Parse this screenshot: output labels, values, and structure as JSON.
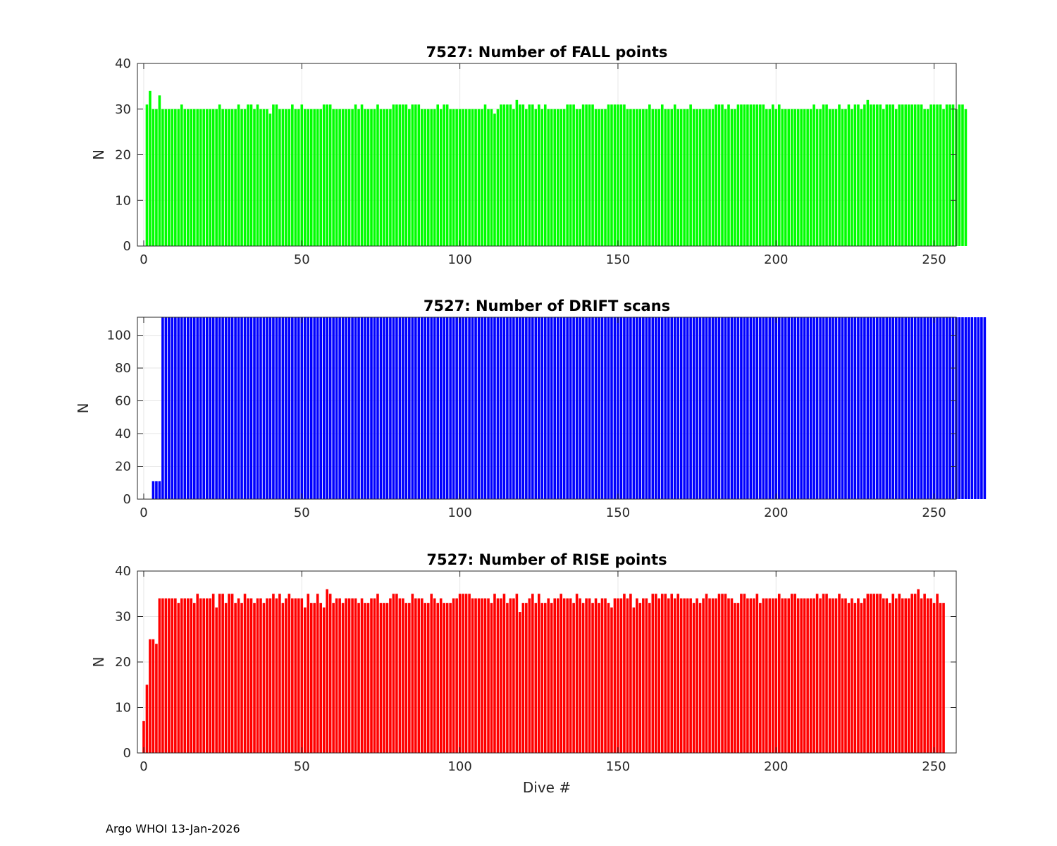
{
  "footer": "Argo WHOI 13-Jan-2026",
  "chart_data": [
    {
      "type": "bar",
      "title": "7527: Number of FALL points",
      "xlabel": "",
      "ylabel": "N",
      "xlim": [
        -2,
        257
      ],
      "ylim": [
        0,
        40
      ],
      "xticks": [
        0,
        50,
        100,
        150,
        200,
        250
      ],
      "yticks": [
        0,
        10,
        20,
        30,
        40
      ],
      "grid": true,
      "color": "#00ff00",
      "series": [
        {
          "name": "FALL points",
          "x_start": 1,
          "values": [
            31,
            34,
            30,
            30,
            33,
            30,
            30,
            30,
            30,
            30,
            30,
            31,
            30,
            30,
            30,
            30,
            30,
            30,
            30,
            30,
            30,
            30,
            30,
            31,
            30,
            30,
            30,
            30,
            30,
            31,
            30,
            30,
            31,
            31,
            30,
            31,
            30,
            30,
            30,
            29,
            31,
            31,
            30,
            30,
            30,
            30,
            31,
            30,
            30,
            31,
            30,
            30,
            30,
            30,
            30,
            30,
            31,
            31,
            31,
            30,
            30,
            30,
            30,
            30,
            30,
            30,
            31,
            30,
            31,
            30,
            30,
            30,
            30,
            31,
            30,
            30,
            30,
            30,
            31,
            31,
            31,
            31,
            31,
            30,
            31,
            31,
            31,
            30,
            30,
            30,
            30,
            30,
            31,
            30,
            31,
            31,
            30,
            30,
            30,
            30,
            30,
            30,
            30,
            30,
            30,
            30,
            30,
            31,
            30,
            30,
            29,
            30,
            31,
            31,
            31,
            31,
            30,
            32,
            31,
            31,
            30,
            31,
            31,
            30,
            31,
            30,
            31,
            30,
            30,
            30,
            30,
            30,
            30,
            31,
            31,
            31,
            30,
            30,
            31,
            31,
            31,
            31,
            30,
            30,
            30,
            30,
            31,
            31,
            31,
            31,
            31,
            31,
            30,
            30,
            30,
            30,
            30,
            30,
            30,
            31,
            30,
            30,
            30,
            31,
            30,
            30,
            30,
            31,
            30,
            30,
            30,
            30,
            31,
            30,
            30,
            30,
            30,
            30,
            30,
            30,
            31,
            31,
            31,
            30,
            31,
            30,
            30,
            31,
            31,
            31,
            31,
            31,
            31,
            31,
            31,
            31,
            30,
            30,
            31,
            30,
            31,
            30,
            30,
            30,
            30,
            30,
            30,
            30,
            30,
            30,
            30,
            31,
            30,
            30,
            31,
            31,
            30,
            30,
            30,
            31,
            30,
            30,
            31,
            30,
            31,
            31,
            30,
            31,
            32,
            31,
            31,
            31,
            31,
            30,
            31,
            31,
            31,
            30,
            31,
            31,
            31,
            31,
            31,
            31,
            31,
            31,
            30,
            30,
            31,
            31,
            31,
            31,
            30,
            31,
            31,
            31,
            30,
            31,
            31,
            30
          ]
        }
      ]
    },
    {
      "type": "bar",
      "title": "7527: Number of DRIFT scans",
      "xlabel": "",
      "ylabel": "N",
      "xlim": [
        -2,
        257
      ],
      "ylim": [
        0,
        111
      ],
      "xticks": [
        0,
        50,
        100,
        150,
        200,
        250
      ],
      "yticks": [
        0,
        20,
        40,
        60,
        80,
        100
      ],
      "grid": true,
      "color": "#0000ff",
      "series": [
        {
          "name": "DRIFT scans",
          "x_start": 3,
          "values": [
            11,
            11,
            11,
            111,
            111,
            111,
            111,
            111,
            111,
            111,
            111,
            111,
            111,
            111,
            111,
            111,
            111,
            111,
            111,
            111,
            111,
            111,
            111,
            111,
            111,
            111,
            111,
            111,
            111,
            111,
            111,
            111,
            111,
            111,
            111,
            111,
            111,
            111,
            111,
            111,
            111,
            111,
            111,
            111,
            111,
            111,
            111,
            111,
            111,
            111,
            111,
            111,
            111,
            111,
            111,
            111,
            111,
            111,
            111,
            111,
            111,
            111,
            111,
            111,
            111,
            111,
            111,
            111,
            111,
            111,
            111,
            111,
            111,
            111,
            111,
            111,
            111,
            111,
            111,
            111,
            111,
            111,
            111,
            111,
            111,
            111,
            111,
            111,
            111,
            111,
            111,
            111,
            111,
            111,
            111,
            111,
            111,
            111,
            111,
            111,
            111,
            111,
            111,
            111,
            111,
            111,
            111,
            111,
            111,
            111,
            111,
            111,
            111,
            111,
            111,
            111,
            111,
            111,
            111,
            111,
            111,
            111,
            111,
            111,
            111,
            111,
            111,
            111,
            111,
            111,
            111,
            111,
            111,
            111,
            111,
            111,
            111,
            111,
            111,
            111,
            111,
            111,
            111,
            111,
            111,
            111,
            111,
            111,
            111,
            111,
            111,
            111,
            111,
            111,
            111,
            111,
            111,
            111,
            111,
            111,
            111,
            111,
            111,
            111,
            111,
            111,
            111,
            111,
            111,
            111,
            111,
            111,
            111,
            111,
            111,
            111,
            111,
            111,
            111,
            111,
            111,
            111,
            111,
            111,
            111,
            111,
            111,
            111,
            111,
            111,
            111,
            111,
            111,
            111,
            111,
            111,
            111,
            111,
            111,
            111,
            111,
            111,
            111,
            111,
            111,
            111,
            111,
            111,
            111,
            111,
            111,
            111,
            111,
            111,
            111,
            111,
            111,
            111,
            111,
            111,
            111,
            111,
            111,
            111,
            111,
            111,
            111,
            111,
            111,
            111,
            111,
            111,
            111,
            111,
            111,
            111,
            111,
            111,
            111,
            111,
            111,
            111,
            111,
            111,
            111,
            111,
            111,
            111,
            111,
            111,
            111,
            111,
            111,
            111,
            111,
            111,
            111,
            111,
            111,
            111,
            111,
            111,
            111,
            111
          ]
        }
      ]
    },
    {
      "type": "bar",
      "title": "7527: Number of RISE points",
      "xlabel": "Dive #",
      "ylabel": "N",
      "xlim": [
        -2,
        257
      ],
      "ylim": [
        0,
        40
      ],
      "xticks": [
        0,
        50,
        100,
        150,
        200,
        250
      ],
      "yticks": [
        0,
        10,
        20,
        30,
        40
      ],
      "grid": true,
      "color": "#ff0000",
      "series": [
        {
          "name": "RISE points",
          "x_start": 0,
          "values": [
            7,
            15,
            25,
            25,
            24,
            34,
            34,
            34,
            34,
            34,
            34,
            33,
            34,
            34,
            34,
            34,
            33,
            35,
            34,
            34,
            34,
            34,
            35,
            32,
            35,
            35,
            33,
            35,
            35,
            33,
            34,
            33,
            35,
            34,
            34,
            33,
            34,
            34,
            33,
            34,
            34,
            35,
            34,
            35,
            33,
            34,
            35,
            34,
            34,
            34,
            34,
            32,
            35,
            33,
            33,
            35,
            33,
            32,
            36,
            35,
            33,
            34,
            34,
            33,
            34,
            34,
            34,
            34,
            33,
            34,
            33,
            33,
            34,
            34,
            35,
            33,
            33,
            33,
            34,
            35,
            35,
            34,
            34,
            33,
            33,
            35,
            34,
            34,
            34,
            33,
            33,
            35,
            34,
            33,
            34,
            33,
            33,
            33,
            34,
            34,
            35,
            35,
            35,
            35,
            34,
            34,
            34,
            34,
            34,
            34,
            33,
            35,
            34,
            34,
            35,
            33,
            34,
            34,
            35,
            31,
            33,
            33,
            34,
            35,
            33,
            35,
            33,
            33,
            34,
            33,
            34,
            34,
            35,
            34,
            34,
            34,
            33,
            35,
            34,
            33,
            34,
            34,
            33,
            34,
            33,
            34,
            34,
            33,
            32,
            34,
            34,
            34,
            35,
            34,
            35,
            32,
            34,
            33,
            34,
            34,
            33,
            35,
            35,
            34,
            35,
            35,
            34,
            35,
            34,
            35,
            34,
            34,
            34,
            34,
            33,
            34,
            33,
            34,
            35,
            34,
            34,
            34,
            35,
            35,
            35,
            34,
            34,
            33,
            33,
            35,
            35,
            34,
            34,
            34,
            35,
            33,
            34,
            34,
            34,
            34,
            34,
            35,
            34,
            34,
            34,
            35,
            35,
            34,
            34,
            34,
            34,
            34,
            34,
            35,
            34,
            35,
            35,
            34,
            34,
            34,
            35,
            34,
            34,
            33,
            34,
            33,
            34,
            33,
            34,
            35,
            35,
            35,
            35,
            35,
            34,
            34,
            33,
            35,
            34,
            35,
            34,
            34,
            34,
            35,
            35,
            36,
            34,
            35,
            34,
            34,
            33,
            35,
            33,
            33
          ]
        }
      ]
    }
  ]
}
